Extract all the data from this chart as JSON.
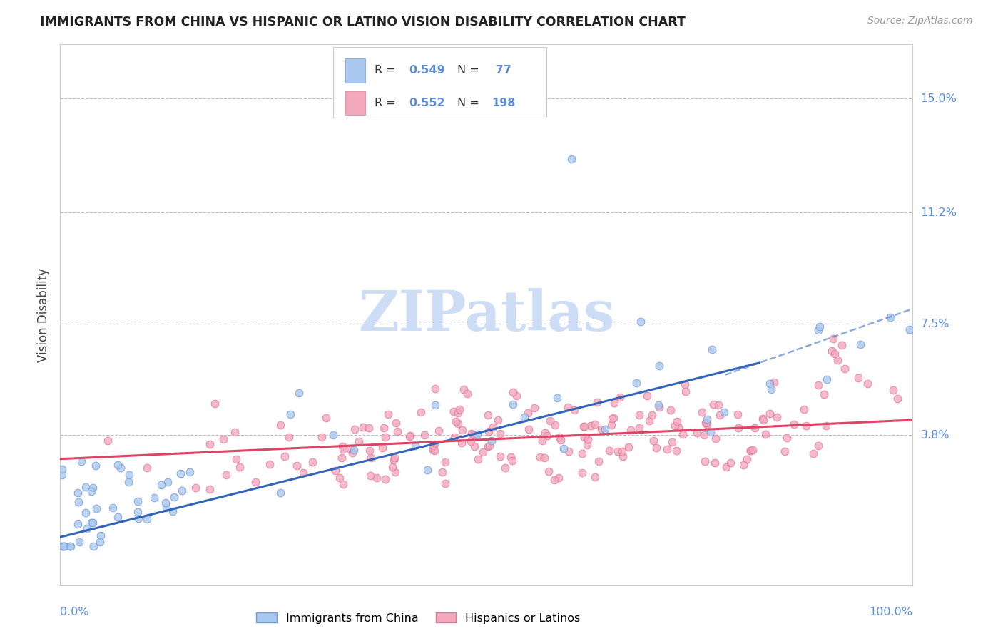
{
  "title": "IMMIGRANTS FROM CHINA VS HISPANIC OR LATINO VISION DISABILITY CORRELATION CHART",
  "source": "Source: ZipAtlas.com",
  "ylabel": "Vision Disability",
  "tick_label_color": "#5b8dd9",
  "ytick_labels": [
    "15.0%",
    "11.2%",
    "7.5%",
    "3.8%"
  ],
  "ytick_values": [
    0.15,
    0.112,
    0.075,
    0.038
  ],
  "xmin": 0.0,
  "xmax": 1.0,
  "ymin": -0.012,
  "ymax": 0.168,
  "legend_r1": "0.549",
  "legend_n1": "77",
  "legend_r2": "0.552",
  "legend_n2": "198",
  "color_china_fill": "#a8c8f0",
  "color_china_edge": "#7799cc",
  "color_hispanic_fill": "#f4a8bc",
  "color_hispanic_edge": "#dd7799",
  "color_china_line": "#3366bb",
  "color_hispanic_line": "#dd4466",
  "watermark_color": "#ccddf5",
  "background_color": "#ffffff",
  "grid_color": "#bbbbcc"
}
